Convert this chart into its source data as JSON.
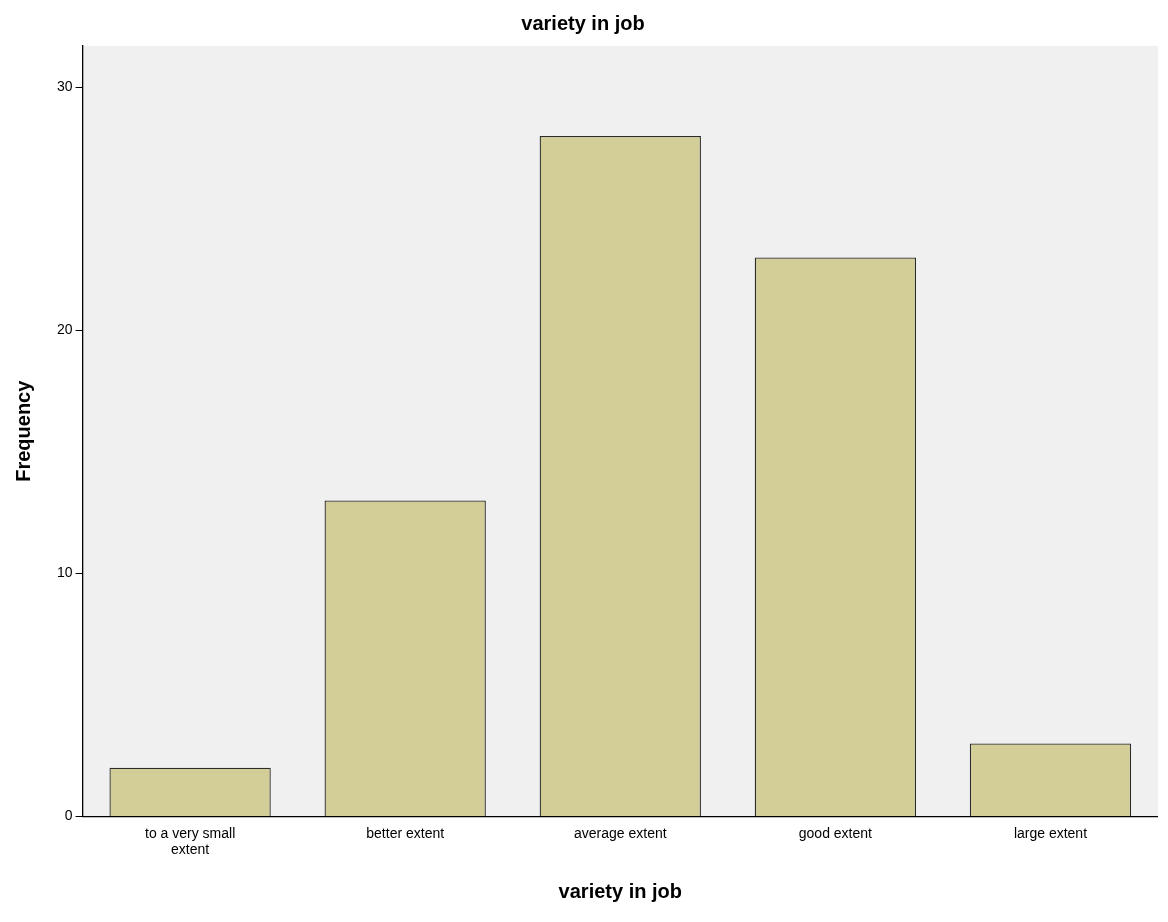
{
  "chart_data": {
    "type": "bar",
    "title": "variety in job",
    "xlabel": "variety in job",
    "ylabel": "Frequency",
    "categories": [
      "to a very small extent",
      "better extent",
      "average extent",
      "good extent",
      "large extent"
    ],
    "values": [
      2,
      13,
      28,
      23,
      3
    ],
    "color": "#d3ce97",
    "ylim": [
      0,
      31.7
    ],
    "yticks": [
      0,
      10,
      20,
      30
    ],
    "grid": false,
    "legend": false
  }
}
